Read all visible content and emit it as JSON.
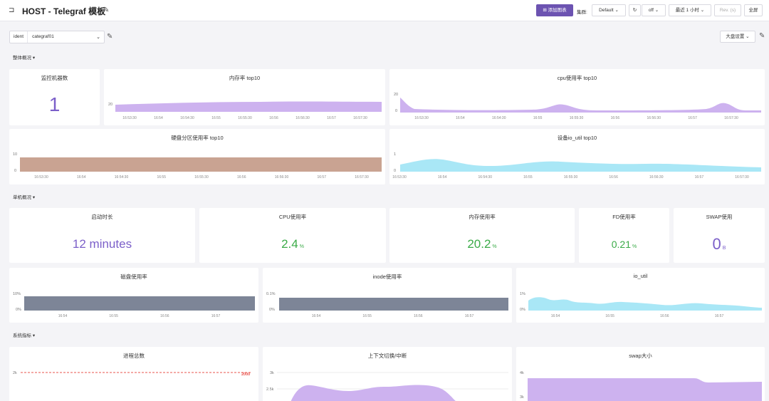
{
  "header": {
    "title": "HOST - Telegraf 模板",
    "add_panel": "添加图表",
    "datasource_label": "集群:",
    "datasource_value": "Default",
    "refresh_value": "off",
    "time_range": "最近 1 小时",
    "rev_placeholder": "Rev. (s)",
    "fullscreen": "全屏"
  },
  "variables": {
    "ident_label": "ident",
    "ident_value": "categraf01",
    "right_dropdown": "大盘设置"
  },
  "sections": [
    {
      "title": "整体概况"
    },
    {
      "title": "单机概况"
    },
    {
      "title": "系统指标"
    }
  ],
  "panels": {
    "monitored": {
      "title": "监控机器数",
      "value": "1",
      "color": "#7b5fc9"
    },
    "mem_top": {
      "title": "内存率 top10",
      "y_ticks": [
        "20"
      ],
      "x_ticks": [
        "16:53:30",
        "16:54",
        "16:54:30",
        "16:55",
        "16:55:30",
        "16:56",
        "16:56:30",
        "16:57",
        "16:57:30"
      ]
    },
    "cpu_top": {
      "title": "cpu使用率 top10",
      "y_ticks": [
        "20",
        "0"
      ],
      "x_ticks": [
        "16:53:30",
        "16:54",
        "16:54:30",
        "16:55",
        "16:55:30",
        "16:56",
        "16:56:30",
        "16:57",
        "16:57:30"
      ]
    },
    "disk_top": {
      "title": "硬盘分区使用率 top10",
      "y_ticks": [
        "10",
        "0"
      ],
      "x_ticks": [
        "16:53:30",
        "16:54",
        "16:54:30",
        "16:55",
        "16:55:30",
        "16:56",
        "16:56:30",
        "16:57",
        "16:57:30"
      ]
    },
    "io_top": {
      "title": "设备io_util top10",
      "y_ticks": [
        "1",
        "0"
      ],
      "x_ticks": [
        "16:53:30",
        "16:54",
        "16:54:30",
        "16:55",
        "16:55:30",
        "16:56",
        "16:56:30",
        "16:57",
        "16:57:30"
      ]
    },
    "uptime": {
      "title": "启动时长",
      "value": "12 minutes",
      "color": "#7b5fc9"
    },
    "cpu_usage": {
      "title": "CPU使用率",
      "value": "2.4",
      "unit": "%",
      "color": "#3bab48"
    },
    "mem_usage": {
      "title": "内存使用率",
      "value": "20.2",
      "unit": "%",
      "color": "#3bab48"
    },
    "fd_usage": {
      "title": "FD使用率",
      "value": "0.21",
      "unit": "%",
      "color": "#3bab48"
    },
    "swap_usage": {
      "title": "SWAP使用",
      "value": "0",
      "unit": "B",
      "color": "#7b5fc9"
    },
    "disk_usage": {
      "title": "磁盘使用率",
      "y_ticks": [
        "10%",
        "0%"
      ],
      "x_ticks": [
        "16:54",
        "16:55",
        "16:56",
        "16:57"
      ]
    },
    "inode_usage": {
      "title": "inode使用率",
      "y_ticks": [
        "0.1%",
        "0%"
      ],
      "x_ticks": [
        "16:54",
        "16:55",
        "16:56",
        "16:57"
      ]
    },
    "io_util": {
      "title": "io_util",
      "y_ticks": [
        "1%",
        "0%"
      ],
      "x_ticks": [
        "16:54",
        "16:55",
        "16:56",
        "16:57"
      ]
    },
    "proc_total": {
      "title": "进程总数",
      "y_ticks": [
        "2k"
      ],
      "threshold": "2000"
    },
    "ctx_switch": {
      "title": "上下文切换/中断",
      "y_ticks": [
        "3k",
        "2.5k"
      ]
    },
    "swap_size": {
      "title": "swap大小",
      "y_ticks": [
        "4k",
        "3k"
      ]
    }
  },
  "colors": {
    "purple_fill": "#cdb2ef",
    "brown_fill": "#c9a392",
    "cyan_fill": "#a9e7f6",
    "slate_fill": "#7d8597",
    "red_line": "#e8554e",
    "accent": "#6c53b1"
  }
}
